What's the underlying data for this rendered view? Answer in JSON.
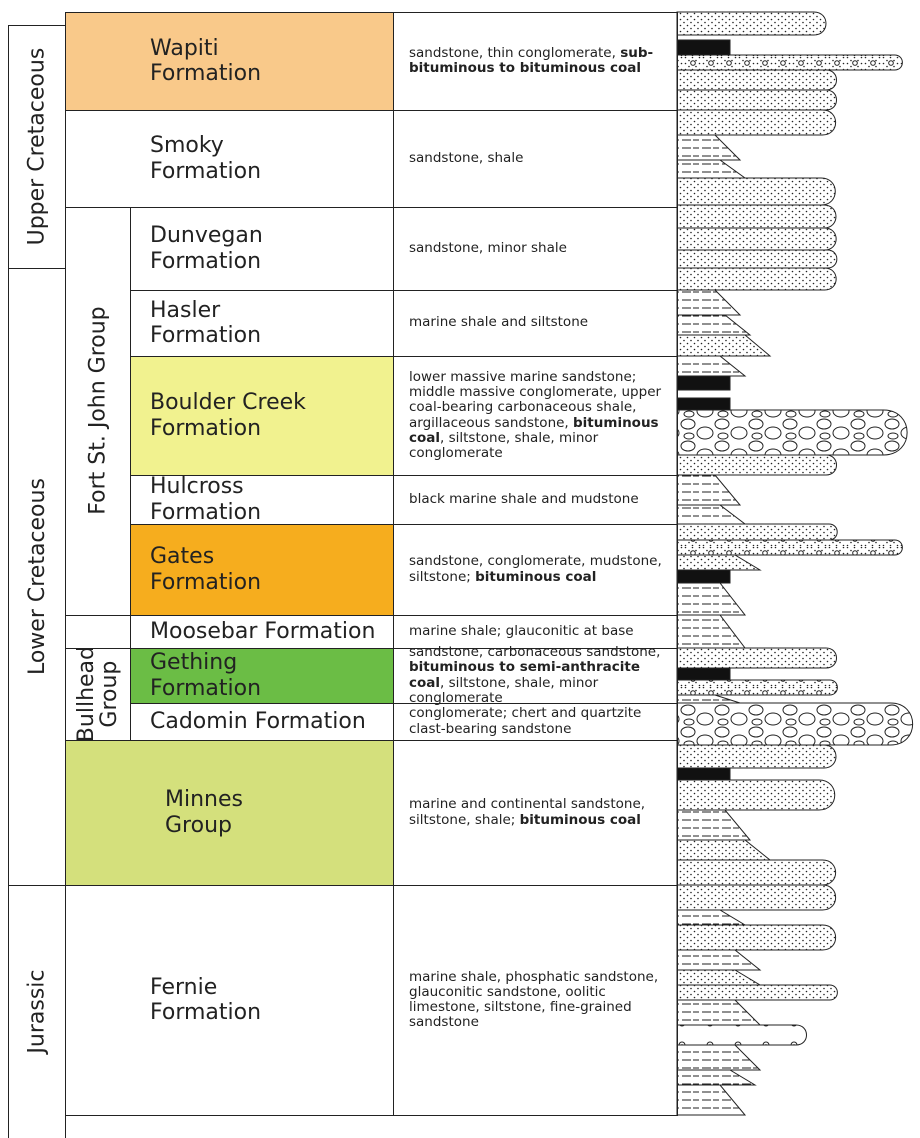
{
  "periods": [
    "Upper Cretaceous",
    "Lower Cretaceous",
    "Jurassic"
  ],
  "groups": [
    {
      "name": [
        "Fort St. John Group"
      ]
    },
    {
      "name": [
        "Bullhead",
        "Group"
      ]
    }
  ],
  "units": [
    {
      "name": [
        "Wapiti",
        "Formation"
      ],
      "color": "#f9c98a",
      "desc": [
        {
          "text": "sandstone, thin conglomerate, "
        },
        {
          "text": "sub-bituminous to bituminous coal",
          "bold": true
        }
      ]
    },
    {
      "name": [
        "Smoky",
        "Formation"
      ],
      "color": "#ffffff",
      "desc": [
        {
          "text": "sandstone, shale"
        }
      ]
    },
    {
      "name": [
        "Dunvegan",
        "Formation"
      ],
      "color": "#ffffff",
      "desc": [
        {
          "text": "sandstone, minor shale"
        }
      ]
    },
    {
      "name": [
        "Hasler",
        "Formation"
      ],
      "color": "#ffffff",
      "desc": [
        {
          "text": "marine shale and siltstone"
        }
      ]
    },
    {
      "name": [
        "Boulder Creek",
        "Formation"
      ],
      "color": "#f1f28f",
      "desc": [
        {
          "text": "lower massive marine sandstone; middle massive conglomerate, upper coal-bearing carbonaceous shale, argillaceous sandstone, "
        },
        {
          "text": "bituminous coal",
          "bold": true
        },
        {
          "text": ", siltstone, shale, minor conglomerate"
        }
      ]
    },
    {
      "name": [
        "Hulcross",
        "Formation"
      ],
      "color": "#ffffff",
      "desc": [
        {
          "text": "black marine shale and mudstone"
        }
      ]
    },
    {
      "name": [
        "Gates",
        "Formation"
      ],
      "color": "#f6ad1e",
      "desc": [
        {
          "text": "sandstone, conglomerate, mudstone, siltstone; "
        },
        {
          "text": "bituminous coal",
          "bold": true
        }
      ]
    },
    {
      "name": [
        "Moosebar Formation"
      ],
      "color": "#ffffff",
      "desc": [
        {
          "text": "marine shale; glauconitic at base"
        }
      ]
    },
    {
      "name": [
        "Gething",
        "Formation"
      ],
      "color": "#6bbd45",
      "desc": [
        {
          "text": "sandstone, carbonaceous sandstone, "
        },
        {
          "text": "bituminous to semi-anthracite coal",
          "bold": true
        },
        {
          "text": ", siltstone, shale, minor conglomerate"
        }
      ]
    },
    {
      "name": [
        "Cadomin Formation"
      ],
      "color": "#ffffff",
      "desc": [
        {
          "text": "conglomerate; chert and quartzite clast-bearing sandstone"
        }
      ]
    },
    {
      "name": [
        "Minnes",
        "Group"
      ],
      "color": "#d4e07c",
      "desc": [
        {
          "text": "marine and continental sandstone, siltstone, shale; "
        },
        {
          "text": "bituminous coal",
          "bold": true
        }
      ]
    },
    {
      "name": [
        "Fernie",
        "Formation"
      ],
      "color": "#ffffff",
      "desc": [
        {
          "text": "marine shale, phosphatic sandstone, glauconitic sandstone, oolitic limestone, siltstone, fine-grained sandstone"
        }
      ]
    }
  ]
}
